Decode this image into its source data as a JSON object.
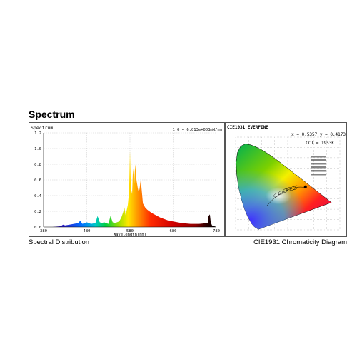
{
  "page": {
    "section_title": "Spectrum",
    "left_caption": "Spectral Distribution",
    "right_caption": "CIE1931 Chromaticity Diagram"
  },
  "chart_data": [
    {
      "type": "area",
      "title": "Spectrum",
      "annotation": "1.0 = 6.013e+003mW/nm",
      "xlabel": "Wavelength(nm)",
      "ylabel": "",
      "xlim": [
        380,
        780
      ],
      "ylim": [
        0,
        1.2
      ],
      "x_ticks": [
        "380",
        "480",
        "580",
        "680",
        "780"
      ],
      "y_ticks": [
        "0.0",
        "0.2",
        "0.4",
        "0.6",
        "0.8",
        "1.0",
        "1.2"
      ],
      "grid": true,
      "x": [
        380,
        400,
        420,
        425,
        430,
        440,
        450,
        460,
        465,
        470,
        475,
        480,
        490,
        500,
        505,
        510,
        515,
        520,
        530,
        535,
        540,
        545,
        550,
        555,
        560,
        565,
        567,
        570,
        575,
        578,
        580,
        582,
        585,
        587,
        590,
        592,
        595,
        598,
        600,
        602,
        605,
        610,
        615,
        620,
        625,
        630,
        640,
        650,
        660,
        670,
        680,
        700,
        720,
        740,
        760,
        762,
        765,
        767,
        770,
        780
      ],
      "y": [
        0.0,
        0.0,
        0.01,
        0.03,
        0.02,
        0.03,
        0.04,
        0.05,
        0.08,
        0.04,
        0.05,
        0.06,
        0.04,
        0.05,
        0.14,
        0.06,
        0.05,
        0.06,
        0.04,
        0.14,
        0.06,
        0.05,
        0.06,
        0.07,
        0.12,
        0.2,
        0.25,
        0.15,
        0.28,
        0.45,
        0.97,
        0.5,
        0.42,
        0.75,
        0.55,
        0.8,
        0.6,
        0.5,
        0.45,
        0.48,
        0.6,
        0.3,
        0.25,
        0.22,
        0.2,
        0.18,
        0.15,
        0.12,
        0.1,
        0.08,
        0.07,
        0.05,
        0.04,
        0.04,
        0.05,
        0.14,
        0.16,
        0.06,
        0.02,
        0.0
      ]
    },
    {
      "type": "scatter",
      "title": "CIE1931  EVERFINE",
      "readout": "x = 0.5357  y = 0.4173",
      "cct": "CCT = 1953K",
      "x": [
        0.5357
      ],
      "y": [
        0.4173
      ],
      "xlim": [
        0,
        0.8
      ],
      "ylim": [
        0,
        0.9
      ],
      "grid": true
    }
  ]
}
